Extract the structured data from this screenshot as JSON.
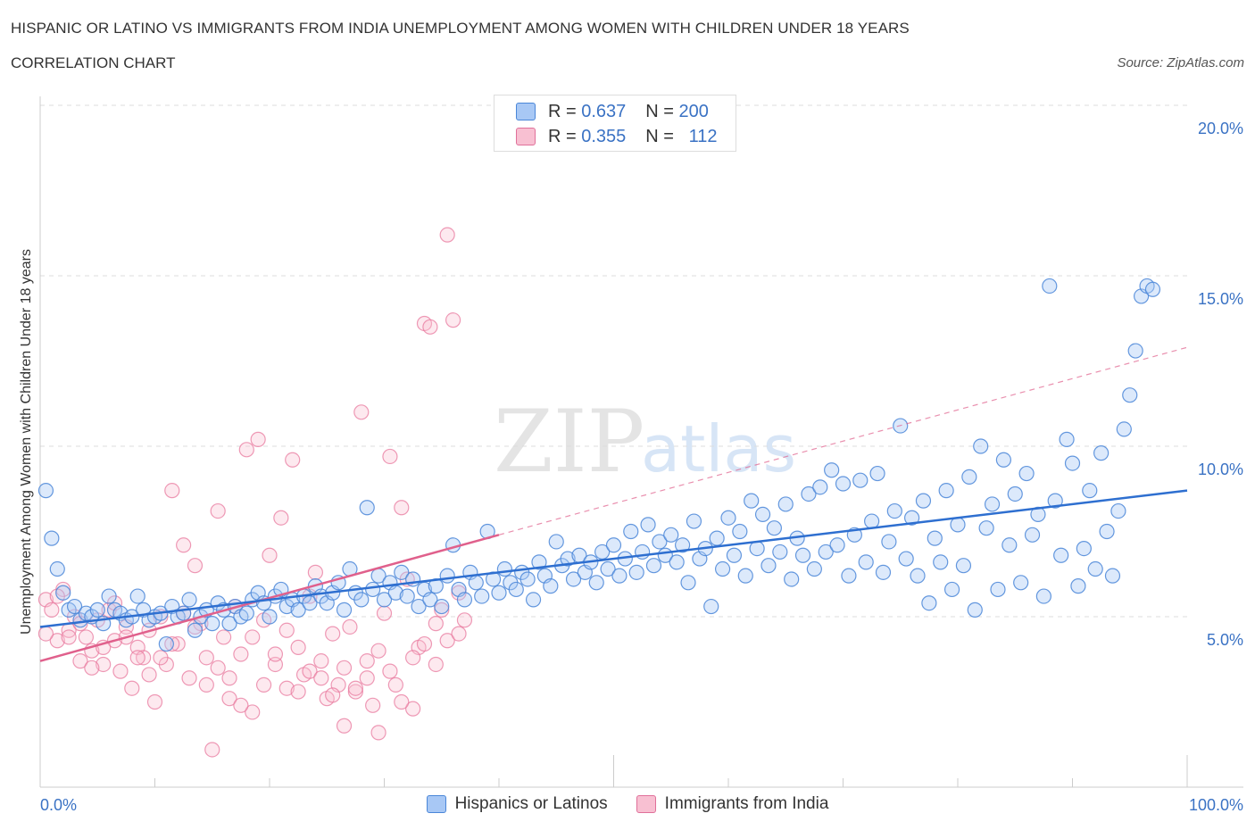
{
  "title": "HISPANIC OR LATINO VS IMMIGRANTS FROM INDIA UNEMPLOYMENT AMONG WOMEN WITH CHILDREN UNDER 18 YEARS",
  "subtitle": "CORRELATION CHART",
  "source": "Source: ZipAtlas.com",
  "watermark": {
    "zip": "ZIP",
    "atlas": "atlas"
  },
  "legend": {
    "r_label": "R =",
    "n_label": "N =",
    "entries": [
      {
        "r": "0.637",
        "n": "200",
        "color": "#a8c8f5",
        "edge": "#4a86d8"
      },
      {
        "r": "0.355",
        "n": "112",
        "color": "#f8c0d2",
        "edge": "#e0709a"
      }
    ]
  },
  "colors": {
    "blue": "#4a86d8",
    "blue_line": "#2e6fd0",
    "pink": "#e8789e",
    "pink_line": "#e0608c",
    "grid": "#dddddd",
    "tick_label": "#3a72c4"
  },
  "chart_data": {
    "type": "scatter",
    "title": "HISPANIC OR LATINO VS IMMIGRANTS FROM INDIA UNEMPLOYMENT AMONG WOMEN WITH CHILDREN UNDER 18 YEARS",
    "xlabel": "",
    "ylabel": "Unemployment Among Women with Children Under 18 years",
    "xlim": [
      0,
      100
    ],
    "ylim": [
      0,
      20
    ],
    "x_tick_labels": [
      "0.0%",
      "100.0%"
    ],
    "y_ticks": [
      5,
      10,
      15,
      20
    ],
    "y_tick_labels": [
      "5.0%",
      "10.0%",
      "15.0%",
      "20.0%"
    ],
    "grid": true,
    "legend_position": "bottom",
    "series": [
      {
        "name": "Hispanics or Latinos",
        "trend": {
          "x0": 0,
          "y0": 4.7,
          "x1": 100,
          "y1": 8.7
        },
        "points": [
          [
            0.5,
            8.7
          ],
          [
            1,
            7.3
          ],
          [
            1.5,
            6.4
          ],
          [
            2,
            5.7
          ],
          [
            2.5,
            5.2
          ],
          [
            3,
            5.3
          ],
          [
            3.5,
            4.9
          ],
          [
            4,
            5.1
          ],
          [
            4.5,
            5.0
          ],
          [
            5,
            5.2
          ],
          [
            5.5,
            4.8
          ],
          [
            6,
            5.6
          ],
          [
            6.5,
            5.2
          ],
          [
            7,
            5.1
          ],
          [
            7.5,
            4.9
          ],
          [
            8,
            5.0
          ],
          [
            8.5,
            5.6
          ],
          [
            9,
            5.2
          ],
          [
            9.5,
            4.9
          ],
          [
            10,
            5.0
          ],
          [
            10.5,
            5.1
          ],
          [
            11,
            4.2
          ],
          [
            11.5,
            5.3
          ],
          [
            12,
            5.0
          ],
          [
            12.5,
            5.1
          ],
          [
            13,
            5.5
          ],
          [
            13.5,
            4.6
          ],
          [
            14,
            5.0
          ],
          [
            14.5,
            5.2
          ],
          [
            15,
            4.8
          ],
          [
            15.5,
            5.4
          ],
          [
            16,
            5.2
          ],
          [
            16.5,
            4.8
          ],
          [
            17,
            5.3
          ],
          [
            17.5,
            5.0
          ],
          [
            18,
            5.1
          ],
          [
            18.5,
            5.5
          ],
          [
            19,
            5.7
          ],
          [
            19.5,
            5.4
          ],
          [
            20,
            5.0
          ],
          [
            20.5,
            5.6
          ],
          [
            21,
            5.8
          ],
          [
            21.5,
            5.3
          ],
          [
            22,
            5.5
          ],
          [
            22.5,
            5.2
          ],
          [
            23,
            5.6
          ],
          [
            23.5,
            5.4
          ],
          [
            24,
            5.9
          ],
          [
            24.5,
            5.6
          ],
          [
            25,
            5.4
          ],
          [
            25.5,
            5.7
          ],
          [
            26,
            6.0
          ],
          [
            26.5,
            5.2
          ],
          [
            27,
            6.4
          ],
          [
            27.5,
            5.7
          ],
          [
            28,
            5.5
          ],
          [
            28.5,
            8.2
          ],
          [
            29,
            5.8
          ],
          [
            29.5,
            6.2
          ],
          [
            30,
            5.5
          ],
          [
            30.5,
            6.0
          ],
          [
            31,
            5.7
          ],
          [
            31.5,
            6.3
          ],
          [
            32,
            5.6
          ],
          [
            32.5,
            6.1
          ],
          [
            33,
            5.3
          ],
          [
            33.5,
            5.8
          ],
          [
            34,
            5.5
          ],
          [
            34.5,
            5.9
          ],
          [
            35,
            5.3
          ],
          [
            35.5,
            6.2
          ],
          [
            36,
            7.1
          ],
          [
            36.5,
            5.8
          ],
          [
            37,
            5.5
          ],
          [
            37.5,
            6.3
          ],
          [
            38,
            6.0
          ],
          [
            38.5,
            5.6
          ],
          [
            39,
            7.5
          ],
          [
            39.5,
            6.1
          ],
          [
            40,
            5.7
          ],
          [
            40.5,
            6.4
          ],
          [
            41,
            6.0
          ],
          [
            41.5,
            5.8
          ],
          [
            42,
            6.3
          ],
          [
            42.5,
            6.1
          ],
          [
            43,
            5.5
          ],
          [
            43.5,
            6.6
          ],
          [
            44,
            6.2
          ],
          [
            44.5,
            5.9
          ],
          [
            45,
            7.2
          ],
          [
            45.5,
            6.5
          ],
          [
            46,
            6.7
          ],
          [
            46.5,
            6.1
          ],
          [
            47,
            6.8
          ],
          [
            47.5,
            6.3
          ],
          [
            48,
            6.6
          ],
          [
            48.5,
            6.0
          ],
          [
            49,
            6.9
          ],
          [
            49.5,
            6.4
          ],
          [
            50,
            7.1
          ],
          [
            50.5,
            6.2
          ],
          [
            51,
            6.7
          ],
          [
            51.5,
            7.5
          ],
          [
            52,
            6.3
          ],
          [
            52.5,
            6.9
          ],
          [
            53,
            7.7
          ],
          [
            53.5,
            6.5
          ],
          [
            54,
            7.2
          ],
          [
            54.5,
            6.8
          ],
          [
            55,
            7.4
          ],
          [
            55.5,
            6.6
          ],
          [
            56,
            7.1
          ],
          [
            56.5,
            6.0
          ],
          [
            57,
            7.8
          ],
          [
            57.5,
            6.7
          ],
          [
            58,
            7.0
          ],
          [
            58.5,
            5.3
          ],
          [
            59,
            7.3
          ],
          [
            59.5,
            6.4
          ],
          [
            60,
            7.9
          ],
          [
            60.5,
            6.8
          ],
          [
            61,
            7.5
          ],
          [
            61.5,
            6.2
          ],
          [
            62,
            8.4
          ],
          [
            62.5,
            7.0
          ],
          [
            63,
            8.0
          ],
          [
            63.5,
            6.5
          ],
          [
            64,
            7.6
          ],
          [
            64.5,
            6.9
          ],
          [
            65,
            8.3
          ],
          [
            65.5,
            6.1
          ],
          [
            66,
            7.3
          ],
          [
            66.5,
            6.8
          ],
          [
            67,
            8.6
          ],
          [
            67.5,
            6.4
          ],
          [
            68,
            8.8
          ],
          [
            68.5,
            6.9
          ],
          [
            69,
            9.3
          ],
          [
            69.5,
            7.1
          ],
          [
            70,
            8.9
          ],
          [
            70.5,
            6.2
          ],
          [
            71,
            7.4
          ],
          [
            71.5,
            9.0
          ],
          [
            72,
            6.6
          ],
          [
            72.5,
            7.8
          ],
          [
            73,
            9.2
          ],
          [
            73.5,
            6.3
          ],
          [
            74,
            7.2
          ],
          [
            74.5,
            8.1
          ],
          [
            75,
            10.6
          ],
          [
            75.5,
            6.7
          ],
          [
            76,
            7.9
          ],
          [
            76.5,
            6.2
          ],
          [
            77,
            8.4
          ],
          [
            77.5,
            5.4
          ],
          [
            78,
            7.3
          ],
          [
            78.5,
            6.6
          ],
          [
            79,
            8.7
          ],
          [
            79.5,
            5.8
          ],
          [
            80,
            7.7
          ],
          [
            80.5,
            6.5
          ],
          [
            81,
            9.1
          ],
          [
            81.5,
            5.2
          ],
          [
            82,
            10.0
          ],
          [
            82.5,
            7.6
          ],
          [
            83,
            8.3
          ],
          [
            83.5,
            5.8
          ],
          [
            84,
            9.6
          ],
          [
            84.5,
            7.1
          ],
          [
            85,
            8.6
          ],
          [
            85.5,
            6.0
          ],
          [
            86,
            9.2
          ],
          [
            86.5,
            7.4
          ],
          [
            87,
            8.0
          ],
          [
            87.5,
            5.6
          ],
          [
            88,
            14.7
          ],
          [
            88.5,
            8.4
          ],
          [
            89,
            6.8
          ],
          [
            89.5,
            10.2
          ],
          [
            90,
            9.5
          ],
          [
            90.5,
            5.9
          ],
          [
            91,
            7.0
          ],
          [
            91.5,
            8.7
          ],
          [
            92,
            6.4
          ],
          [
            92.5,
            9.8
          ],
          [
            93,
            7.5
          ],
          [
            93.5,
            6.2
          ],
          [
            94,
            8.1
          ],
          [
            94.5,
            10.5
          ],
          [
            95,
            11.5
          ],
          [
            95.5,
            12.8
          ],
          [
            96,
            14.4
          ],
          [
            96.5,
            14.7
          ],
          [
            97,
            14.6
          ]
        ]
      },
      {
        "name": "Immigrants from India",
        "trend": {
          "x0": 0,
          "y0": 3.7,
          "x1": 40,
          "y1": 7.4,
          "dash_x1": 100,
          "dash_y1": 12.9
        },
        "points": [
          [
            0.5,
            5.5
          ],
          [
            1,
            5.2
          ],
          [
            1.5,
            4.3
          ],
          [
            2,
            5.8
          ],
          [
            2.5,
            4.6
          ],
          [
            3,
            5.0
          ],
          [
            3.5,
            3.7
          ],
          [
            4,
            4.4
          ],
          [
            4.5,
            4.0
          ],
          [
            5,
            4.9
          ],
          [
            5.5,
            3.6
          ],
          [
            6,
            5.2
          ],
          [
            6.5,
            4.3
          ],
          [
            7,
            3.4
          ],
          [
            7.5,
            4.7
          ],
          [
            8,
            2.9
          ],
          [
            8.5,
            4.1
          ],
          [
            9,
            3.8
          ],
          [
            9.5,
            4.6
          ],
          [
            10,
            2.5
          ],
          [
            10.5,
            5.0
          ],
          [
            11,
            3.6
          ],
          [
            11.5,
            8.7
          ],
          [
            12,
            4.2
          ],
          [
            12.5,
            7.1
          ],
          [
            13,
            3.2
          ],
          [
            13.5,
            6.5
          ],
          [
            14,
            4.8
          ],
          [
            14.5,
            3.0
          ],
          [
            15,
            1.1
          ],
          [
            15.5,
            8.1
          ],
          [
            16,
            4.4
          ],
          [
            16.5,
            2.6
          ],
          [
            17,
            5.3
          ],
          [
            17.5,
            3.9
          ],
          [
            18,
            9.9
          ],
          [
            18.5,
            2.2
          ],
          [
            19,
            10.2
          ],
          [
            19.5,
            4.9
          ],
          [
            20,
            6.8
          ],
          [
            20.5,
            3.6
          ],
          [
            21,
            7.9
          ],
          [
            21.5,
            2.9
          ],
          [
            22,
            9.6
          ],
          [
            22.5,
            4.1
          ],
          [
            23,
            3.3
          ],
          [
            23.5,
            5.6
          ],
          [
            24,
            6.3
          ],
          [
            24.5,
            3.7
          ],
          [
            25,
            2.6
          ],
          [
            25.5,
            4.5
          ],
          [
            26,
            3.0
          ],
          [
            26.5,
            1.8
          ],
          [
            27,
            4.7
          ],
          [
            27.5,
            2.8
          ],
          [
            28,
            11.0
          ],
          [
            28.5,
            3.7
          ],
          [
            29,
            2.4
          ],
          [
            29.5,
            1.6
          ],
          [
            30,
            5.1
          ],
          [
            30.5,
            9.7
          ],
          [
            31,
            3.0
          ],
          [
            31.5,
            8.2
          ],
          [
            32,
            6.1
          ],
          [
            32.5,
            2.3
          ],
          [
            33,
            4.1
          ],
          [
            33.5,
            13.6
          ],
          [
            34,
            13.5
          ],
          [
            34.5,
            4.8
          ],
          [
            35,
            5.2
          ],
          [
            35.5,
            16.2
          ],
          [
            36,
            13.7
          ],
          [
            36.5,
            5.7
          ],
          [
            37,
            4.9
          ],
          [
            0.5,
            4.5
          ],
          [
            1.5,
            5.6
          ],
          [
            2.5,
            4.4
          ],
          [
            3.5,
            4.8
          ],
          [
            4.5,
            3.5
          ],
          [
            5.5,
            4.1
          ],
          [
            6.5,
            5.4
          ],
          [
            7.5,
            4.4
          ],
          [
            8.5,
            3.8
          ],
          [
            9.5,
            3.3
          ],
          [
            10.5,
            3.8
          ],
          [
            11.5,
            4.2
          ],
          [
            12.5,
            5.1
          ],
          [
            13.5,
            4.7
          ],
          [
            14.5,
            3.8
          ],
          [
            15.5,
            3.5
          ],
          [
            16.5,
            3.2
          ],
          [
            17.5,
            2.4
          ],
          [
            18.5,
            4.4
          ],
          [
            19.5,
            3.0
          ],
          [
            20.5,
            3.9
          ],
          [
            21.5,
            4.6
          ],
          [
            22.5,
            2.8
          ],
          [
            23.5,
            3.4
          ],
          [
            24.5,
            3.2
          ],
          [
            25.5,
            2.7
          ],
          [
            26.5,
            3.5
          ],
          [
            27.5,
            2.9
          ],
          [
            28.5,
            3.2
          ],
          [
            29.5,
            4.0
          ],
          [
            30.5,
            3.4
          ],
          [
            31.5,
            2.5
          ],
          [
            32.5,
            3.8
          ],
          [
            33.5,
            4.2
          ],
          [
            34.5,
            3.6
          ],
          [
            35.5,
            4.3
          ],
          [
            36.5,
            4.5
          ]
        ]
      }
    ]
  }
}
